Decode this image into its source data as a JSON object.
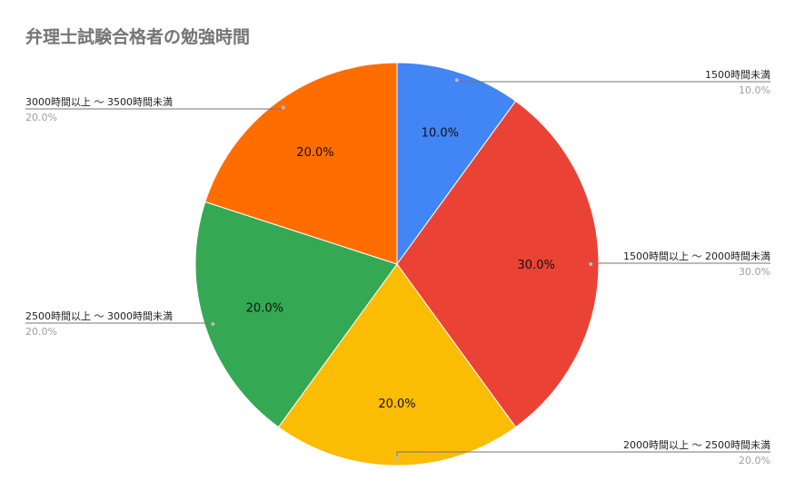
{
  "chart_data": {
    "type": "pie",
    "title": "弁理士試験合格者の勉強時間",
    "slices": [
      {
        "name": "1500時間未満",
        "value": 10.0,
        "label": "10.0%",
        "color": "#4285f4"
      },
      {
        "name": "1500時間以上 ～ 2000時間未満",
        "value": 30.0,
        "label": "30.0%",
        "color": "#ea4335"
      },
      {
        "name": "2000時間以上 ～ 2500時間未満",
        "value": 20.0,
        "label": "20.0%",
        "color": "#fbbc04"
      },
      {
        "name": "2500時間以上 ～ 3000時間未満",
        "value": 20.0,
        "label": "20.0%",
        "color": "#34a853"
      },
      {
        "name": "3000時間以上 ～ 3500時間未満",
        "value": 20.0,
        "label": "20.0%",
        "color": "#ff6d01"
      }
    ],
    "start_angle_deg": 0,
    "direction": "clockwise",
    "legend": "callout-labels"
  }
}
